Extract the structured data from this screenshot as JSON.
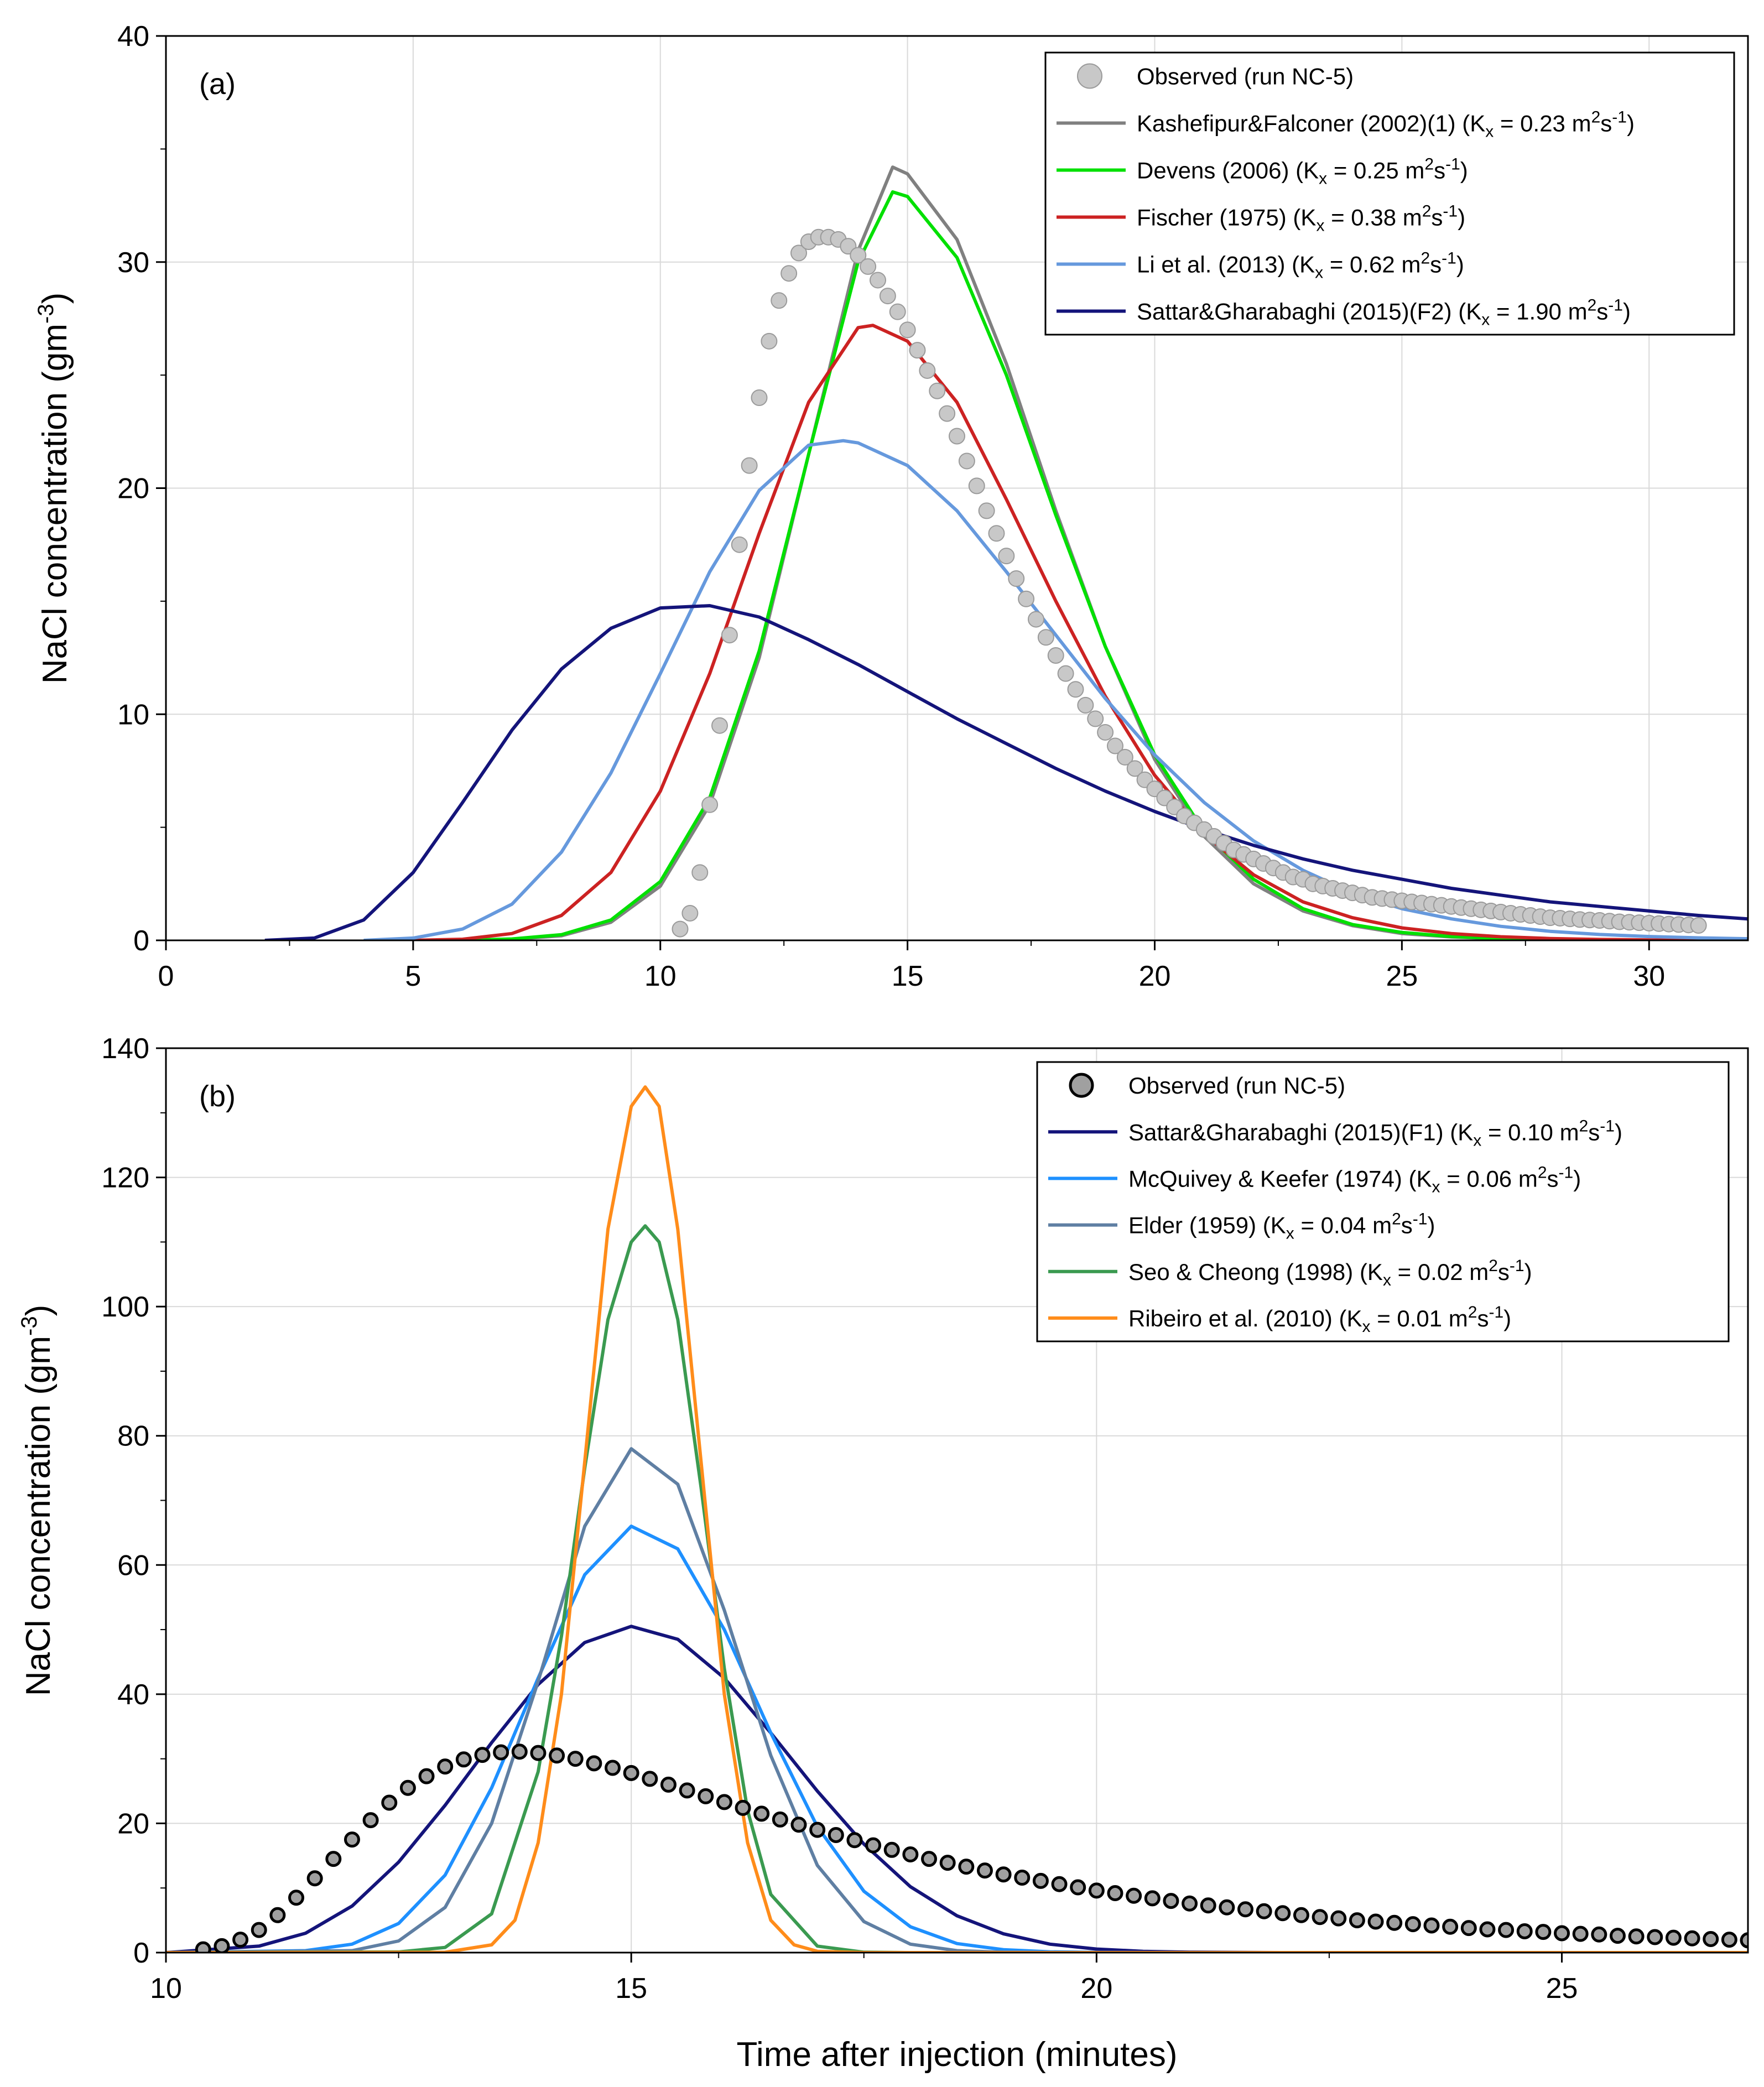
{
  "chart_data": [
    {
      "type": "line",
      "panel_label": "(a)",
      "xlabel": "",
      "ylabel": "NaCl concentration (gm",
      "ylabel_sup": "-3",
      "ylabel_end": ")",
      "xlim": [
        0,
        32
      ],
      "ylim": [
        0,
        40
      ],
      "xticks": [
        0,
        5,
        10,
        15,
        20,
        25,
        30
      ],
      "yticks": [
        0,
        10,
        20,
        30,
        40
      ],
      "grid": true,
      "legend_position": "top-right",
      "observed": {
        "name": "Observed (run NC-5)",
        "color": "#bfbfbf",
        "marker": "circle-gray",
        "x": [
          10.4,
          10.6,
          10.8,
          11.0,
          11.2,
          11.4,
          11.6,
          11.8,
          12.0,
          12.2,
          12.4,
          12.6,
          12.8,
          13.0,
          13.2,
          13.4,
          13.6,
          13.8,
          14.0,
          14.2,
          14.4,
          14.6,
          14.8,
          15.0,
          15.2,
          15.4,
          15.6,
          15.8,
          16.0,
          16.2,
          16.4,
          16.6,
          16.8,
          17.0,
          17.2,
          17.4,
          17.6,
          17.8,
          18.0,
          18.2,
          18.4,
          18.6,
          18.8,
          19.0,
          19.2,
          19.4,
          19.6,
          19.8,
          20.0,
          20.2,
          20.4,
          20.6,
          20.8,
          21.0,
          21.2,
          21.4,
          21.6,
          21.8,
          22.0,
          22.2,
          22.4,
          22.6,
          22.8,
          23.0,
          23.2,
          23.4,
          23.6,
          23.8,
          24.0,
          24.2,
          24.4,
          24.6,
          24.8,
          25.0,
          25.2,
          25.4,
          25.6,
          25.8,
          26.0,
          26.2,
          26.4,
          26.6,
          26.8,
          27.0,
          27.2,
          27.4,
          27.6,
          27.8,
          28.0,
          28.2,
          28.4,
          28.6,
          28.8,
          29.0,
          29.2,
          29.4,
          29.6,
          29.8,
          30.0,
          30.2,
          30.4,
          30.6,
          30.8,
          31.0
        ],
        "y": [
          0.5,
          1.2,
          3.0,
          6.0,
          9.5,
          13.5,
          17.5,
          21.0,
          24.0,
          26.5,
          28.3,
          29.5,
          30.4,
          30.9,
          31.1,
          31.1,
          31.0,
          30.7,
          30.3,
          29.8,
          29.2,
          28.5,
          27.8,
          27.0,
          26.1,
          25.2,
          24.3,
          23.3,
          22.3,
          21.2,
          20.1,
          19.0,
          18.0,
          17.0,
          16.0,
          15.1,
          14.2,
          13.4,
          12.6,
          11.8,
          11.1,
          10.4,
          9.8,
          9.2,
          8.6,
          8.1,
          7.6,
          7.1,
          6.7,
          6.3,
          5.9,
          5.5,
          5.2,
          4.9,
          4.6,
          4.3,
          4.0,
          3.8,
          3.6,
          3.4,
          3.2,
          3.0,
          2.8,
          2.7,
          2.5,
          2.4,
          2.3,
          2.2,
          2.1,
          2.0,
          1.9,
          1.85,
          1.8,
          1.75,
          1.7,
          1.65,
          1.6,
          1.55,
          1.5,
          1.45,
          1.4,
          1.35,
          1.3,
          1.25,
          1.2,
          1.15,
          1.1,
          1.05,
          1.0,
          0.98,
          0.95,
          0.92,
          0.9,
          0.88,
          0.85,
          0.82,
          0.8,
          0.78,
          0.76,
          0.74,
          0.72,
          0.7,
          0.68,
          0.66
        ]
      },
      "series": [
        {
          "name": "Kashefipur&Falconer (2002)(1)",
          "kx_text": "0.23",
          "color": "#808080",
          "peak_x": 14.7,
          "peak_y": 34.2,
          "sd_left": 1.6,
          "sd_right": 2.2,
          "skew": "gauss",
          "x": [
            6,
            7,
            8,
            9,
            10,
            11,
            12,
            13,
            14,
            14.7,
            15,
            16,
            17,
            18,
            19,
            20,
            21,
            22,
            23,
            24,
            25,
            26,
            27,
            28,
            29,
            30,
            31,
            32
          ],
          "y": [
            0,
            0.05,
            0.2,
            0.8,
            2.4,
            6.0,
            12.5,
            21.5,
            30.5,
            34.2,
            33.9,
            31.0,
            25.5,
            19.0,
            13.0,
            8.0,
            4.6,
            2.5,
            1.3,
            0.65,
            0.3,
            0.15,
            0.07,
            0.03,
            0.02,
            0.01,
            0,
            0
          ]
        },
        {
          "name": "Devens (2006)",
          "kx_text": "0.25",
          "color": "#00e000",
          "x": [
            6,
            7,
            8,
            9,
            10,
            11,
            12,
            13,
            14,
            14.7,
            15,
            16,
            17,
            18,
            19,
            20,
            21,
            22,
            23,
            24,
            25,
            26,
            27,
            28,
            29,
            30,
            31,
            32
          ],
          "y": [
            0,
            0.06,
            0.25,
            0.9,
            2.6,
            6.3,
            12.8,
            21.5,
            30.0,
            33.1,
            32.9,
            30.2,
            25.0,
            18.8,
            13.0,
            8.2,
            4.8,
            2.7,
            1.4,
            0.7,
            0.35,
            0.17,
            0.08,
            0.04,
            0.02,
            0.01,
            0,
            0
          ]
        },
        {
          "name": "Fischer (1975)",
          "kx_text": "0.38",
          "color": "#cc2222",
          "x": [
            5,
            6,
            7,
            8,
            9,
            10,
            11,
            12,
            13,
            14,
            14.3,
            15,
            16,
            17,
            18,
            19,
            20,
            21,
            22,
            23,
            24,
            25,
            26,
            27,
            28,
            29,
            30,
            31,
            32
          ],
          "y": [
            0,
            0.05,
            0.3,
            1.1,
            3.0,
            6.6,
            11.8,
            18.0,
            23.8,
            27.1,
            27.2,
            26.5,
            23.8,
            19.5,
            15.0,
            10.8,
            7.3,
            4.7,
            2.9,
            1.7,
            1.0,
            0.55,
            0.3,
            0.16,
            0.08,
            0.04,
            0.02,
            0.01,
            0
          ]
        },
        {
          "name": "Li et al. (2013)",
          "kx_text": "0.62",
          "color": "#6699dd",
          "x": [
            4,
            5,
            6,
            7,
            8,
            9,
            10,
            11,
            12,
            13,
            13.7,
            14,
            15,
            16,
            17,
            18,
            19,
            20,
            21,
            22,
            23,
            24,
            25,
            26,
            27,
            28,
            29,
            30,
            31,
            32
          ],
          "y": [
            0,
            0.1,
            0.5,
            1.6,
            3.9,
            7.4,
            11.8,
            16.3,
            19.9,
            21.9,
            22.1,
            22.0,
            21.0,
            19.0,
            16.3,
            13.5,
            10.7,
            8.2,
            6.1,
            4.4,
            3.1,
            2.1,
            1.4,
            0.95,
            0.62,
            0.4,
            0.26,
            0.17,
            0.11,
            0.07
          ]
        },
        {
          "name": "Sattar&Gharabaghi (2015)(F2)",
          "kx_text": "1.90",
          "color": "#14147a",
          "x": [
            2,
            3,
            4,
            5,
            6,
            7,
            8,
            9,
            10,
            11,
            12,
            13,
            14,
            15,
            16,
            17,
            18,
            19,
            20,
            21,
            22,
            23,
            24,
            25,
            26,
            27,
            28,
            29,
            30,
            31,
            32
          ],
          "y": [
            0,
            0.1,
            0.9,
            3.0,
            6.1,
            9.3,
            12.0,
            13.8,
            14.7,
            14.8,
            14.3,
            13.3,
            12.2,
            11.0,
            9.8,
            8.7,
            7.6,
            6.6,
            5.7,
            4.9,
            4.2,
            3.6,
            3.1,
            2.7,
            2.3,
            2.0,
            1.7,
            1.5,
            1.3,
            1.1,
            0.95
          ]
        }
      ]
    },
    {
      "type": "line",
      "panel_label": "(b)",
      "xlabel": "Time after injection (minutes)",
      "ylabel": "NaCl concentration (gm",
      "ylabel_sup": "-3",
      "ylabel_end": ")",
      "xlim": [
        10,
        27
      ],
      "ylim": [
        0,
        140
      ],
      "xticks": [
        10,
        15,
        20,
        25
      ],
      "yticks": [
        0,
        20,
        40,
        60,
        80,
        100,
        120,
        140
      ],
      "grid": true,
      "legend_position": "top-right",
      "observed": {
        "name": "Observed (run NC-5)",
        "color": "#000000",
        "marker": "circle-black",
        "x": [
          10.4,
          10.6,
          10.8,
          11.0,
          11.2,
          11.4,
          11.6,
          11.8,
          12.0,
          12.2,
          12.4,
          12.6,
          12.8,
          13.0,
          13.2,
          13.4,
          13.6,
          13.8,
          14.0,
          14.2,
          14.4,
          14.6,
          14.8,
          15.0,
          15.2,
          15.4,
          15.6,
          15.8,
          16.0,
          16.2,
          16.4,
          16.6,
          16.8,
          17.0,
          17.2,
          17.4,
          17.6,
          17.8,
          18.0,
          18.2,
          18.4,
          18.6,
          18.8,
          19.0,
          19.2,
          19.4,
          19.6,
          19.8,
          20.0,
          20.2,
          20.4,
          20.6,
          20.8,
          21.0,
          21.2,
          21.4,
          21.6,
          21.8,
          22.0,
          22.2,
          22.4,
          22.6,
          22.8,
          23.0,
          23.2,
          23.4,
          23.6,
          23.8,
          24.0,
          24.2,
          24.4,
          24.6,
          24.8,
          25.0,
          25.2,
          25.4,
          25.6,
          25.8,
          26.0,
          26.2,
          26.4,
          26.6,
          26.8,
          27.0
        ],
        "y": [
          0.5,
          1.0,
          2.0,
          3.5,
          5.8,
          8.5,
          11.5,
          14.5,
          17.5,
          20.5,
          23.2,
          25.5,
          27.3,
          28.8,
          29.9,
          30.6,
          31.0,
          31.1,
          30.9,
          30.5,
          30.0,
          29.3,
          28.6,
          27.8,
          26.9,
          26.0,
          25.1,
          24.2,
          23.3,
          22.4,
          21.5,
          20.6,
          19.8,
          19.0,
          18.2,
          17.4,
          16.6,
          15.9,
          15.2,
          14.5,
          13.9,
          13.3,
          12.7,
          12.1,
          11.6,
          11.1,
          10.6,
          10.1,
          9.6,
          9.2,
          8.8,
          8.4,
          8.0,
          7.6,
          7.3,
          7.0,
          6.7,
          6.4,
          6.1,
          5.8,
          5.5,
          5.3,
          5.0,
          4.8,
          4.6,
          4.4,
          4.2,
          4.0,
          3.8,
          3.6,
          3.5,
          3.3,
          3.2,
          3.0,
          2.9,
          2.8,
          2.6,
          2.5,
          2.4,
          2.3,
          2.2,
          2.1,
          2.0,
          1.9
        ]
      },
      "series": [
        {
          "name": "Sattar&Gharabaghi (2015)(F1)",
          "kx_text": "0.10",
          "color": "#14147a",
          "x": [
            10,
            11,
            11.5,
            12,
            12.5,
            13,
            13.5,
            14,
            14.5,
            15,
            15.5,
            16,
            16.5,
            17,
            17.5,
            18,
            18.5,
            19,
            19.5,
            20,
            20.5,
            21,
            22,
            27
          ],
          "y": [
            0,
            1.0,
            3.0,
            7.2,
            14.0,
            22.8,
            32.5,
            41.5,
            48.0,
            50.5,
            48.5,
            42.5,
            34.0,
            25.0,
            16.8,
            10.2,
            5.7,
            2.9,
            1.3,
            0.55,
            0.2,
            0.07,
            0,
            0
          ]
        },
        {
          "name": "McQuivey & Keefer (1974)",
          "kx_text": "0.06",
          "color": "#1e90ff",
          "x": [
            10,
            11.5,
            12,
            12.5,
            13,
            13.5,
            14,
            14.5,
            15,
            15.5,
            16,
            16.5,
            17,
            17.5,
            18,
            18.5,
            19,
            19.5,
            20,
            21,
            27
          ],
          "y": [
            0,
            0.3,
            1.3,
            4.5,
            12.0,
            25.5,
            42.5,
            58.5,
            66.0,
            62.5,
            50.0,
            34.0,
            19.5,
            9.5,
            4.0,
            1.4,
            0.45,
            0.12,
            0.03,
            0,
            0
          ]
        },
        {
          "name": "Elder (1959)",
          "kx_text": "0.04",
          "color": "#5f7fa3",
          "x": [
            10,
            12,
            12.5,
            13,
            13.5,
            14,
            14.5,
            15,
            15.5,
            16,
            16.5,
            17,
            17.5,
            18,
            18.5,
            19,
            19.5,
            20,
            27
          ],
          "y": [
            0,
            0.3,
            1.8,
            7.0,
            20.0,
            42.0,
            66.0,
            78.0,
            72.5,
            53.0,
            30.5,
            13.5,
            4.8,
            1.3,
            0.3,
            0.06,
            0.01,
            0,
            0
          ]
        },
        {
          "name": "Seo & Cheong (1998)",
          "kx_text": "0.02",
          "color": "#3a9a50",
          "x": [
            10,
            12.5,
            13,
            13.5,
            14,
            14.25,
            14.5,
            14.75,
            15,
            15.15,
            15.3,
            15.5,
            15.75,
            16,
            16.25,
            16.5,
            17,
            17.5,
            18,
            27
          ],
          "y": [
            0,
            0.1,
            0.8,
            6.0,
            28.0,
            49.0,
            75.0,
            98.0,
            110.0,
            112.5,
            110.0,
            98.0,
            72.0,
            44.0,
            22.0,
            9.0,
            1.0,
            0.06,
            0,
            0
          ]
        },
        {
          "name": "Ribeiro et al. (2010)",
          "kx_text": "0.01",
          "color": "#ff8c1a",
          "x": [
            10,
            13,
            13.5,
            13.75,
            14,
            14.25,
            14.5,
            14.75,
            15,
            15.15,
            15.3,
            15.5,
            15.75,
            16,
            16.25,
            16.5,
            16.75,
            17,
            17.5,
            27
          ],
          "y": [
            0,
            0.05,
            1.2,
            5.0,
            17.0,
            40.0,
            76.0,
            112.0,
            131.0,
            134.0,
            131.0,
            112.0,
            76.0,
            40.0,
            17.0,
            5.0,
            1.2,
            0.2,
            0,
            0
          ]
        }
      ]
    }
  ],
  "legend_kx_prefix": "(K",
  "legend_kx_sub": "x",
  "legend_kx_eq": " = ",
  "legend_unit_m": " m",
  "legend_unit_sup1": "2",
  "legend_unit_s": "s",
  "legend_unit_sup2": "-1",
  "legend_unit_close": ")"
}
